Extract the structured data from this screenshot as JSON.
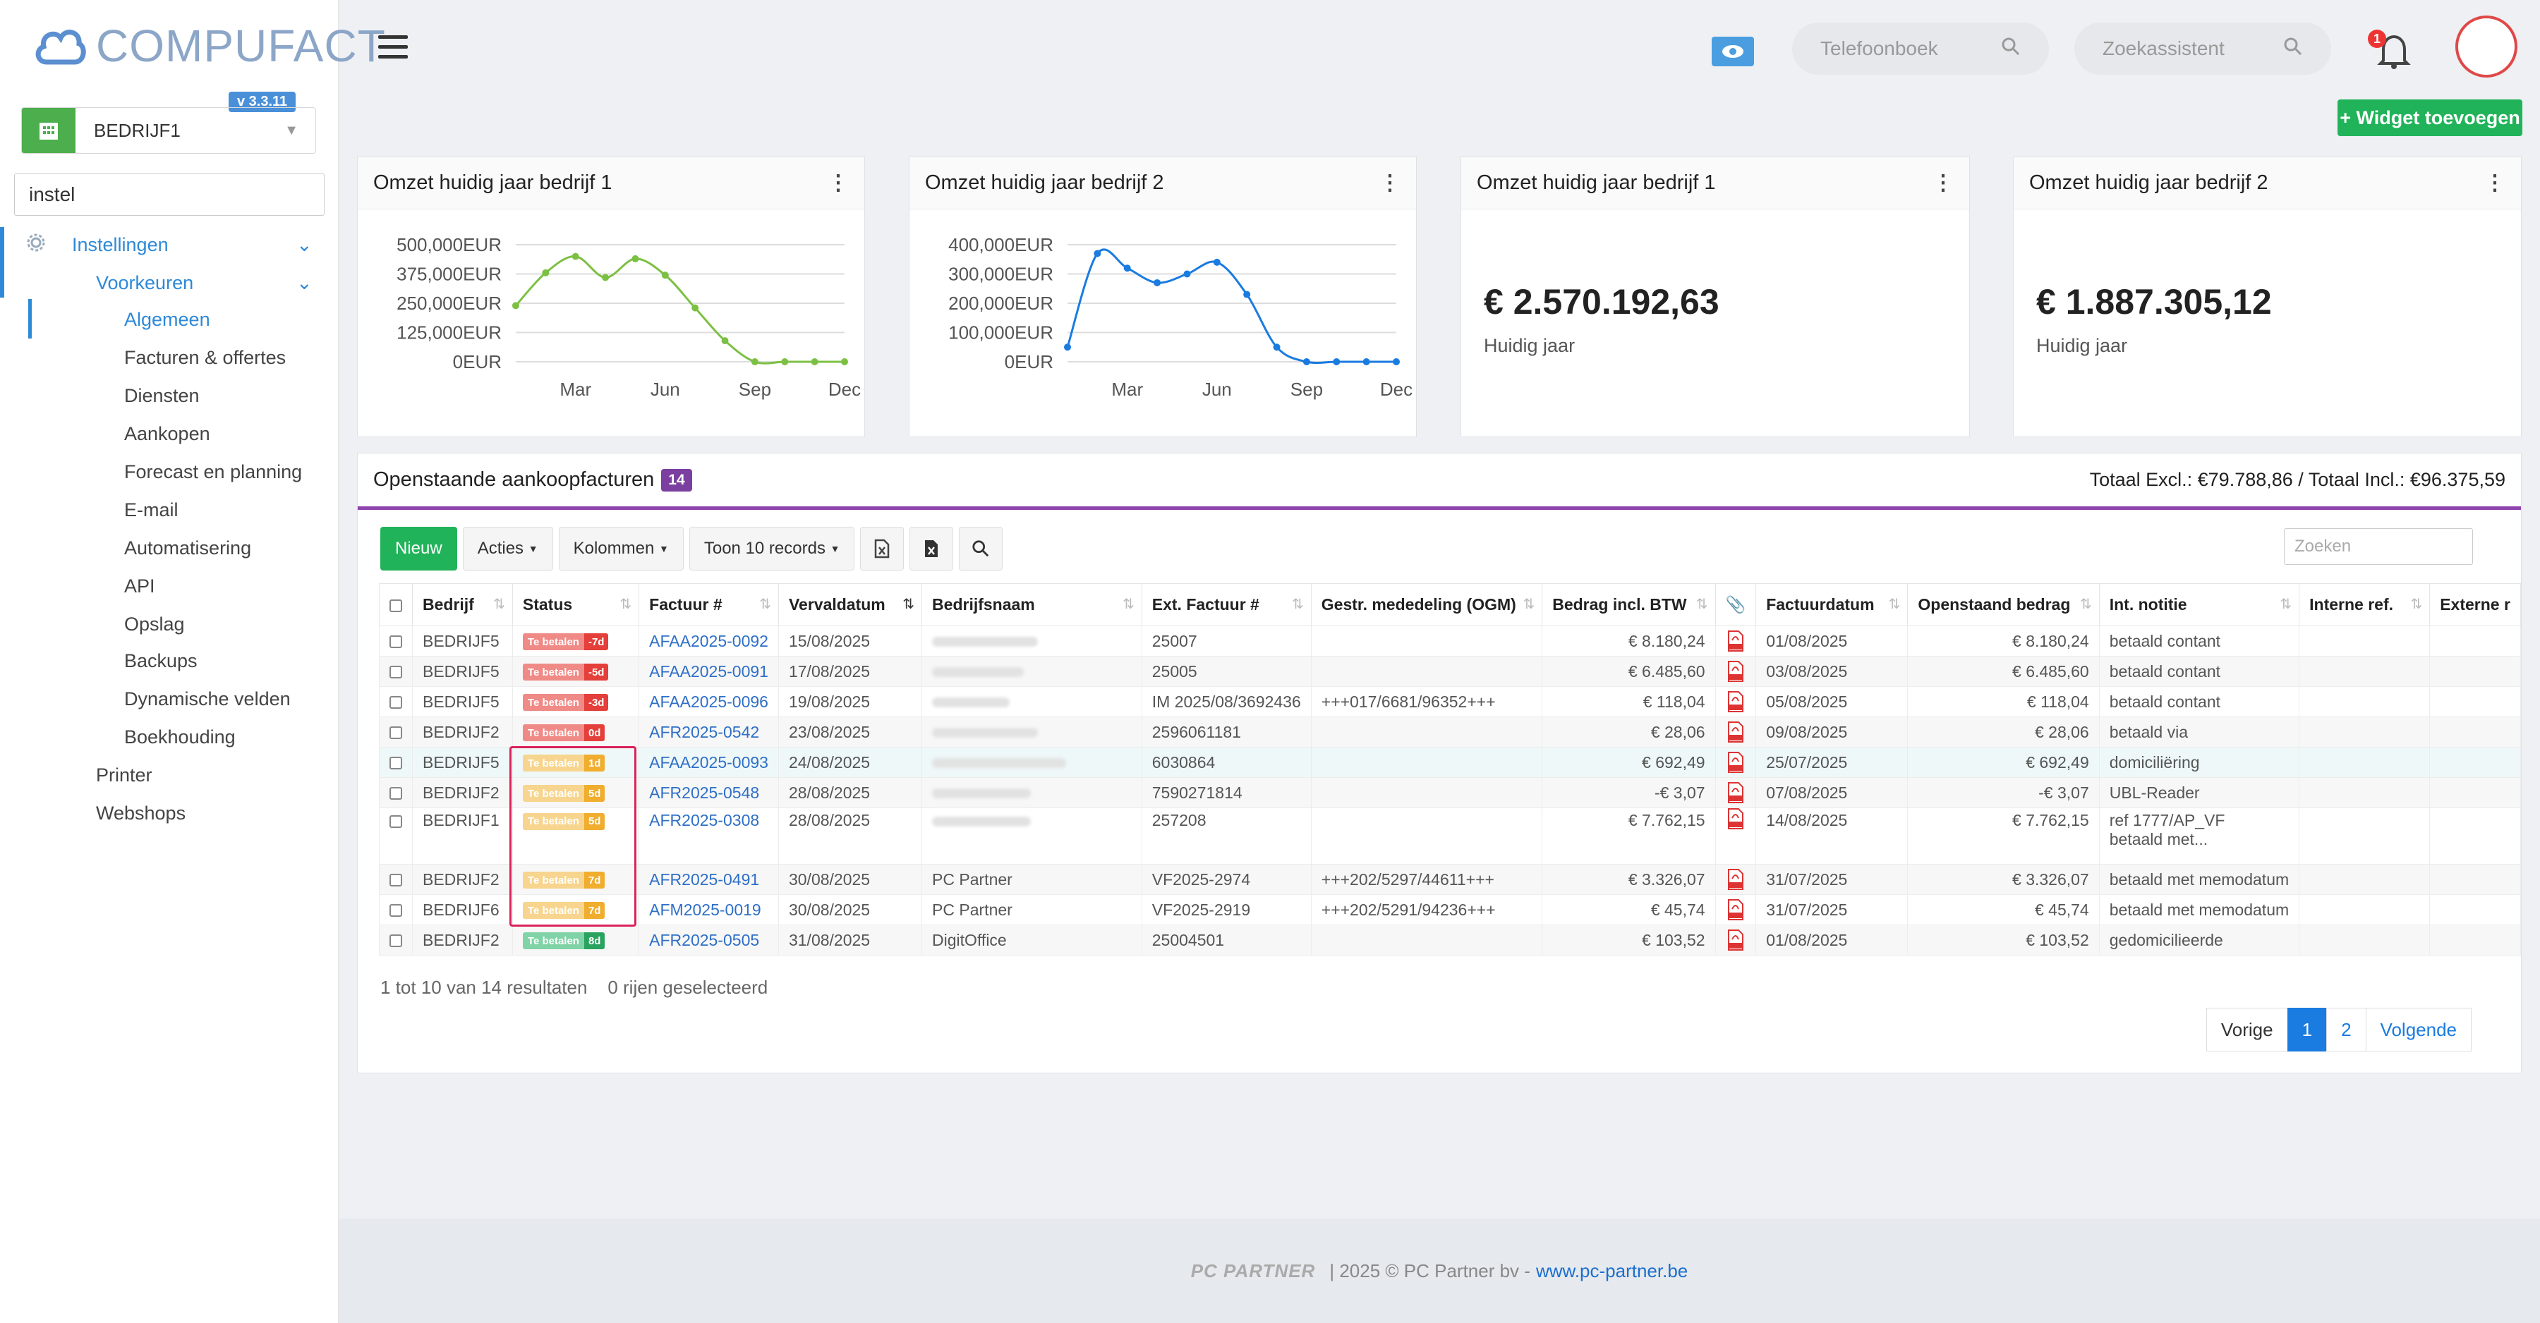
{
  "brand": {
    "name": "COMPUFACT",
    "version": "v 3.3.11"
  },
  "company_selector": {
    "value": "BEDRIJF1"
  },
  "sidebar_search": {
    "value": "instel"
  },
  "menu": {
    "instellingen": "Instellingen",
    "voorkeuren": "Voorkeuren",
    "items": [
      "Algemeen",
      "Facturen & offertes",
      "Diensten",
      "Aankopen",
      "Forecast en planning",
      "E-mail",
      "Automatisering",
      "API",
      "Opslag",
      "Backups",
      "Dynamische velden",
      "Boekhouding"
    ],
    "printer": "Printer",
    "webshops": "Webshops"
  },
  "topbar": {
    "phonebook_placeholder": "Telefoonboek",
    "assistant_placeholder": "Zoekassistent",
    "notification_count": "1"
  },
  "widget_add_label": "+ Widget toevoegen",
  "cards": [
    {
      "title": "Omzet huidig jaar bedrijf 1"
    },
    {
      "title": "Omzet huidig jaar bedrijf 2"
    },
    {
      "title": "Omzet huidig jaar bedrijf 1",
      "value": "€ 2.570.192,63",
      "sub": "Huidig jaar"
    },
    {
      "title": "Omzet huidig jaar bedrijf 2",
      "value": "€ 1.887.305,12",
      "sub": "Huidig jaar"
    }
  ],
  "chart_data": [
    {
      "type": "line",
      "title": "Omzet huidig jaar bedrijf 1",
      "x": [
        "Jan",
        "Feb",
        "Mar",
        "Apr",
        "May",
        "Jun",
        "Jul",
        "Aug",
        "Sep",
        "Oct",
        "Nov",
        "Dec"
      ],
      "tick_labels_x": [
        "Mar",
        "Jun",
        "Sep",
        "Dec"
      ],
      "tick_labels_y": [
        "500,000EUR",
        "375,000EUR",
        "250,000EUR",
        "125,000EUR",
        "0EUR"
      ],
      "series": [
        {
          "values": [
            240000,
            380000,
            450000,
            360000,
            440000,
            370000,
            230000,
            90000,
            0,
            0,
            0,
            0
          ],
          "color": "#7cc043"
        }
      ],
      "ylim": [
        0,
        500000
      ],
      "grid": true
    },
    {
      "type": "line",
      "title": "Omzet huidig jaar bedrijf 2",
      "x": [
        "Jan",
        "Feb",
        "Mar",
        "Apr",
        "May",
        "Jun",
        "Jul",
        "Aug",
        "Sep",
        "Oct",
        "Nov",
        "Dec"
      ],
      "tick_labels_x": [
        "Mar",
        "Jun",
        "Sep",
        "Dec"
      ],
      "tick_labels_y": [
        "400,000EUR",
        "300,000EUR",
        "200,000EUR",
        "100,000EUR",
        "0EUR"
      ],
      "series": [
        {
          "values": [
            50000,
            370000,
            320000,
            270000,
            300000,
            340000,
            230000,
            50000,
            0,
            0,
            0,
            0
          ],
          "color": "#1a7be0"
        }
      ],
      "ylim": [
        0,
        400000
      ],
      "grid": true
    }
  ],
  "table": {
    "title": "Openstaande aankoopfacturen",
    "count": "14",
    "totals": "Totaal Excl.: €79.788,86 / Totaal Incl.: €96.375,59",
    "toolbar": {
      "new": "Nieuw",
      "actions": "Acties",
      "columns": "Kolommen",
      "records": "Toon 10 records"
    },
    "search_placeholder": "Zoeken",
    "headers": [
      "Bedrijf",
      "Status",
      "Factuur #",
      "Vervaldatum",
      "Bedrijfsnaam",
      "Ext. Factuur #",
      "Gestr. mededeling (OGM)",
      "Bedrag incl. BTW",
      "",
      "Factuurdatum",
      "Openstaand bedrag",
      "Int. notitie",
      "Interne ref.",
      "Externe r"
    ],
    "rows": [
      {
        "bedrijf": "BEDRIJF5",
        "status": "Te betalen",
        "days": "-7d",
        "color": "red",
        "factuur": "AFAA2025-0092",
        "verval": "15/08/2025",
        "naam": "",
        "ext": "25007",
        "ogm": "",
        "bedrag": "€ 8.180,24",
        "fdatum": "01/08/2025",
        "open": "€ 8.180,24",
        "notitie": "betaald contant"
      },
      {
        "bedrijf": "BEDRIJF5",
        "status": "Te betalen",
        "days": "-5d",
        "color": "red",
        "factuur": "AFAA2025-0091",
        "verval": "17/08/2025",
        "naam": "",
        "ext": "25005",
        "ogm": "",
        "bedrag": "€ 6.485,60",
        "fdatum": "03/08/2025",
        "open": "€ 6.485,60",
        "notitie": "betaald contant"
      },
      {
        "bedrijf": "BEDRIJF5",
        "status": "Te betalen",
        "days": "-3d",
        "color": "red",
        "factuur": "AFAA2025-0096",
        "verval": "19/08/2025",
        "naam": "",
        "ext": "IM 2025/08/3692436",
        "ogm": "+++017/6681/96352+++",
        "bedrag": "€ 118,04",
        "fdatum": "05/08/2025",
        "open": "€ 118,04",
        "notitie": "betaald contant"
      },
      {
        "bedrijf": "BEDRIJF2",
        "status": "Te betalen",
        "days": "0d",
        "color": "red",
        "factuur": "AFR2025-0542",
        "verval": "23/08/2025",
        "naam": "",
        "ext": "2596061181",
        "ogm": "",
        "bedrag": "€ 28,06",
        "fdatum": "09/08/2025",
        "open": "€ 28,06",
        "notitie": "betaald via"
      },
      {
        "bedrijf": "BEDRIJF5",
        "status": "Te betalen",
        "days": "1d",
        "color": "yel",
        "factuur": "AFAA2025-0093",
        "verval": "24/08/2025",
        "naam": "",
        "ext": "6030864",
        "ogm": "",
        "bedrag": "€ 692,49",
        "fdatum": "25/07/2025",
        "open": "€ 692,49",
        "notitie": "domiciliëring"
      },
      {
        "bedrijf": "BEDRIJF2",
        "status": "Te betalen",
        "days": "5d",
        "color": "yel",
        "factuur": "AFR2025-0548",
        "verval": "28/08/2025",
        "naam": "",
        "ext": "7590271814",
        "ogm": "",
        "bedrag": "-€ 3,07",
        "fdatum": "07/08/2025",
        "open": "-€ 3,07",
        "notitie": "UBL-Reader"
      },
      {
        "bedrijf": "BEDRIJF1",
        "status": "Te betalen",
        "days": "5d",
        "color": "yel",
        "factuur": "AFR2025-0308",
        "verval": "28/08/2025",
        "naam": "",
        "ext": "257208",
        "ogm": "",
        "bedrag": "€ 7.762,15",
        "fdatum": "14/08/2025",
        "open": "€ 7.762,15",
        "notitie": "ref 1777/AP_VF",
        "notitie2": "betaald met..."
      },
      {
        "bedrijf": "BEDRIJF2",
        "status": "Te betalen",
        "days": "7d",
        "color": "yel",
        "factuur": "AFR2025-0491",
        "verval": "30/08/2025",
        "naam": "PC Partner",
        "ext": "VF2025-2974",
        "ogm": "+++202/5297/44611+++",
        "bedrag": "€ 3.326,07",
        "fdatum": "31/07/2025",
        "open": "€ 3.326,07",
        "notitie": "betaald met memodatum"
      },
      {
        "bedrijf": "BEDRIJF6",
        "status": "Te betalen",
        "days": "7d",
        "color": "yel",
        "factuur": "AFM2025-0019",
        "verval": "30/08/2025",
        "naam": "PC Partner",
        "ext": "VF2025-2919",
        "ogm": "+++202/5291/94236+++",
        "bedrag": "€ 45,74",
        "fdatum": "31/07/2025",
        "open": "€ 45,74",
        "notitie": "betaald met memodatum"
      },
      {
        "bedrijf": "BEDRIJF2",
        "status": "Te betalen",
        "days": "8d",
        "color": "grn",
        "factuur": "AFR2025-0505",
        "verval": "31/08/2025",
        "naam": "DigitOffice",
        "ext": "25004501",
        "ogm": "",
        "bedrag": "€ 103,52",
        "fdatum": "01/08/2025",
        "open": "€ 103,52",
        "notitie": "gedomicilieerde"
      }
    ],
    "info": "1 tot 10 van 14 resultaten",
    "selected": "0 rijen geselecteerd",
    "pager": {
      "prev": "Vorige",
      "p1": "1",
      "p2": "2",
      "next": "Volgende"
    }
  },
  "footer": {
    "logo": "PC PARTNER",
    "text": "|  2025 © PC Partner bv -",
    "link": "www.pc-partner.be"
  }
}
